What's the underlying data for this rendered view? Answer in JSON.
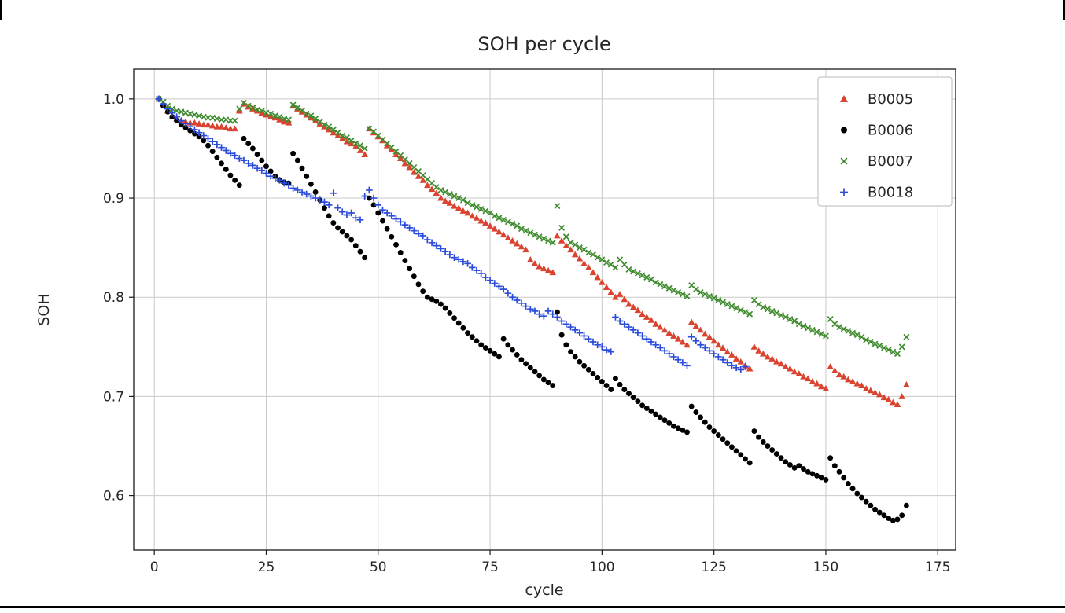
{
  "window": {
    "background": "#ffffff",
    "frame_color": "#000000"
  },
  "chart_data": {
    "type": "scatter",
    "title": "SOH per cycle",
    "xlabel": "cycle",
    "ylabel": "SOH",
    "grid": true,
    "legend_position": "upper right",
    "xlim": [
      -4.6,
      179.0
    ],
    "ylim": [
      0.545,
      1.03
    ],
    "xticks": [
      0,
      25,
      50,
      75,
      100,
      125,
      150,
      175
    ],
    "xtick_labels": [
      "0",
      "25",
      "50",
      "75",
      "100",
      "125",
      "150",
      "175"
    ],
    "yticks": [
      0.6,
      0.7,
      0.8,
      0.9,
      1.0
    ],
    "ytick_labels": [
      "0.6",
      "0.7",
      "0.8",
      "0.9",
      "1.0"
    ],
    "grid_color": "#c9c9c9",
    "spine_color": "#1a1a1a",
    "series": [
      {
        "name": "B0005",
        "marker": "triangle",
        "color": "#d9432f",
        "x_start": 1,
        "x_step": 1,
        "y": [
          1.0,
          0.995,
          0.988,
          0.983,
          0.98,
          0.978,
          0.977,
          0.976,
          0.976,
          0.975,
          0.974,
          0.974,
          0.973,
          0.972,
          0.972,
          0.971,
          0.97,
          0.97,
          0.988,
          0.995,
          0.992,
          0.99,
          0.988,
          0.986,
          0.984,
          0.982,
          0.981,
          0.979,
          0.977,
          0.976,
          0.993,
          0.99,
          0.987,
          0.984,
          0.981,
          0.978,
          0.975,
          0.972,
          0.969,
          0.966,
          0.963,
          0.96,
          0.957,
          0.955,
          0.952,
          0.948,
          0.944,
          0.97,
          0.966,
          0.962,
          0.958,
          0.953,
          0.949,
          0.944,
          0.94,
          0.935,
          0.931,
          0.926,
          0.922,
          0.918,
          0.913,
          0.909,
          0.905,
          0.9,
          0.897,
          0.895,
          0.892,
          0.89,
          0.887,
          0.885,
          0.882,
          0.88,
          0.877,
          0.875,
          0.872,
          0.869,
          0.866,
          0.863,
          0.86,
          0.857,
          0.854,
          0.851,
          0.848,
          0.838,
          0.834,
          0.831,
          0.829,
          0.827,
          0.825,
          0.862,
          0.857,
          0.852,
          0.848,
          0.843,
          0.839,
          0.834,
          0.83,
          0.825,
          0.82,
          0.815,
          0.81,
          0.805,
          0.8,
          0.803,
          0.798,
          0.793,
          0.79,
          0.787,
          0.783,
          0.78,
          0.777,
          0.773,
          0.77,
          0.767,
          0.764,
          0.761,
          0.758,
          0.755,
          0.752,
          0.775,
          0.771,
          0.767,
          0.763,
          0.76,
          0.756,
          0.752,
          0.749,
          0.745,
          0.742,
          0.738,
          0.735,
          0.731,
          0.728,
          0.75,
          0.746,
          0.743,
          0.74,
          0.738,
          0.735,
          0.733,
          0.73,
          0.728,
          0.725,
          0.723,
          0.72,
          0.718,
          0.715,
          0.713,
          0.71,
          0.708,
          0.73,
          0.726,
          0.722,
          0.72,
          0.717,
          0.715,
          0.713,
          0.711,
          0.708,
          0.706,
          0.704,
          0.702,
          0.699,
          0.697,
          0.694,
          0.692,
          0.7,
          0.712
        ]
      },
      {
        "name": "B0006",
        "marker": "circle",
        "color": "#000000",
        "x_start": 1,
        "x_step": 1,
        "y": [
          1.0,
          0.993,
          0.987,
          0.982,
          0.978,
          0.974,
          0.971,
          0.968,
          0.965,
          0.962,
          0.958,
          0.953,
          0.947,
          0.941,
          0.935,
          0.929,
          0.923,
          0.918,
          0.913,
          0.96,
          0.955,
          0.95,
          0.944,
          0.938,
          0.932,
          0.927,
          0.922,
          0.918,
          0.916,
          0.915,
          0.945,
          0.938,
          0.93,
          0.922,
          0.914,
          0.906,
          0.898,
          0.89,
          0.882,
          0.875,
          0.87,
          0.866,
          0.862,
          0.858,
          0.852,
          0.846,
          0.84,
          0.9,
          0.893,
          0.885,
          0.877,
          0.869,
          0.861,
          0.853,
          0.845,
          0.837,
          0.829,
          0.821,
          0.813,
          0.806,
          0.8,
          0.798,
          0.796,
          0.793,
          0.789,
          0.784,
          0.779,
          0.774,
          0.769,
          0.764,
          0.76,
          0.756,
          0.752,
          0.749,
          0.746,
          0.743,
          0.74,
          0.758,
          0.752,
          0.747,
          0.742,
          0.737,
          0.733,
          0.729,
          0.725,
          0.721,
          0.717,
          0.714,
          0.711,
          0.785,
          0.762,
          0.752,
          0.745,
          0.74,
          0.735,
          0.731,
          0.727,
          0.723,
          0.719,
          0.715,
          0.711,
          0.707,
          0.718,
          0.712,
          0.707,
          0.703,
          0.699,
          0.695,
          0.691,
          0.688,
          0.685,
          0.682,
          0.679,
          0.676,
          0.673,
          0.67,
          0.668,
          0.666,
          0.664,
          0.69,
          0.684,
          0.679,
          0.674,
          0.669,
          0.665,
          0.661,
          0.657,
          0.653,
          0.649,
          0.645,
          0.641,
          0.637,
          0.633,
          0.665,
          0.659,
          0.654,
          0.65,
          0.646,
          0.642,
          0.638,
          0.634,
          0.631,
          0.628,
          0.63,
          0.627,
          0.624,
          0.622,
          0.62,
          0.618,
          0.616,
          0.638,
          0.63,
          0.624,
          0.618,
          0.612,
          0.607,
          0.602,
          0.598,
          0.594,
          0.59,
          0.586,
          0.583,
          0.58,
          0.577,
          0.575,
          0.576,
          0.58,
          0.59
        ]
      },
      {
        "name": "B0007",
        "marker": "x",
        "color": "#3e8b2e",
        "x_start": 1,
        "x_step": 1,
        "y": [
          1.0,
          0.997,
          0.993,
          0.99,
          0.988,
          0.987,
          0.986,
          0.985,
          0.984,
          0.983,
          0.982,
          0.981,
          0.981,
          0.98,
          0.979,
          0.979,
          0.978,
          0.978,
          0.99,
          0.996,
          0.993,
          0.991,
          0.989,
          0.988,
          0.986,
          0.985,
          0.983,
          0.982,
          0.98,
          0.979,
          0.994,
          0.991,
          0.988,
          0.985,
          0.983,
          0.98,
          0.977,
          0.974,
          0.972,
          0.969,
          0.966,
          0.963,
          0.961,
          0.958,
          0.955,
          0.953,
          0.95,
          0.97,
          0.967,
          0.963,
          0.959,
          0.955,
          0.951,
          0.947,
          0.943,
          0.939,
          0.935,
          0.931,
          0.927,
          0.923,
          0.919,
          0.915,
          0.911,
          0.908,
          0.906,
          0.904,
          0.902,
          0.9,
          0.898,
          0.895,
          0.893,
          0.891,
          0.889,
          0.887,
          0.885,
          0.882,
          0.88,
          0.878,
          0.876,
          0.874,
          0.872,
          0.869,
          0.867,
          0.865,
          0.863,
          0.861,
          0.859,
          0.857,
          0.855,
          0.892,
          0.87,
          0.861,
          0.855,
          0.853,
          0.85,
          0.848,
          0.845,
          0.843,
          0.84,
          0.838,
          0.835,
          0.833,
          0.83,
          0.838,
          0.833,
          0.828,
          0.826,
          0.824,
          0.822,
          0.82,
          0.818,
          0.815,
          0.813,
          0.811,
          0.809,
          0.807,
          0.805,
          0.803,
          0.801,
          0.812,
          0.808,
          0.805,
          0.803,
          0.801,
          0.799,
          0.797,
          0.795,
          0.793,
          0.791,
          0.789,
          0.787,
          0.785,
          0.783,
          0.797,
          0.793,
          0.79,
          0.788,
          0.786,
          0.784,
          0.782,
          0.78,
          0.778,
          0.776,
          0.773,
          0.771,
          0.769,
          0.767,
          0.765,
          0.763,
          0.761,
          0.778,
          0.773,
          0.77,
          0.768,
          0.766,
          0.764,
          0.762,
          0.76,
          0.757,
          0.755,
          0.753,
          0.751,
          0.749,
          0.747,
          0.745,
          0.743,
          0.75,
          0.76
        ]
      },
      {
        "name": "B0018",
        "marker": "plus",
        "color": "#2a4bdb",
        "x_start": 1,
        "x_step": 1,
        "y": [
          1.0,
          0.995,
          0.99,
          0.986,
          0.982,
          0.978,
          0.975,
          0.972,
          0.969,
          0.966,
          0.963,
          0.96,
          0.957,
          0.954,
          0.951,
          0.948,
          0.945,
          0.943,
          0.94,
          0.938,
          0.935,
          0.933,
          0.93,
          0.928,
          0.925,
          0.922,
          0.92,
          0.918,
          0.915,
          0.913,
          0.91,
          0.908,
          0.906,
          0.904,
          0.902,
          0.9,
          0.898,
          0.896,
          0.893,
          0.905,
          0.89,
          0.886,
          0.883,
          0.885,
          0.88,
          0.878,
          0.902,
          0.908,
          0.9,
          0.893,
          0.888,
          0.885,
          0.882,
          0.879,
          0.876,
          0.873,
          0.87,
          0.867,
          0.864,
          0.862,
          0.858,
          0.855,
          0.852,
          0.849,
          0.846,
          0.843,
          0.84,
          0.838,
          0.836,
          0.834,
          0.83,
          0.827,
          0.824,
          0.82,
          0.817,
          0.814,
          0.811,
          0.808,
          0.804,
          0.8,
          0.797,
          0.794,
          0.791,
          0.788,
          0.786,
          0.783,
          0.781,
          0.786,
          0.783,
          0.78,
          0.776,
          0.773,
          0.77,
          0.767,
          0.764,
          0.761,
          0.758,
          0.755,
          0.752,
          0.75,
          0.747,
          0.745,
          0.78,
          0.776,
          0.773,
          0.77,
          0.767,
          0.764,
          0.761,
          0.758,
          0.755,
          0.752,
          0.749,
          0.746,
          0.743,
          0.74,
          0.737,
          0.734,
          0.731,
          0.76,
          0.756,
          0.752,
          0.749,
          0.746,
          0.743,
          0.74,
          0.737,
          0.734,
          0.731,
          0.729,
          0.727,
          0.73
        ]
      }
    ]
  }
}
